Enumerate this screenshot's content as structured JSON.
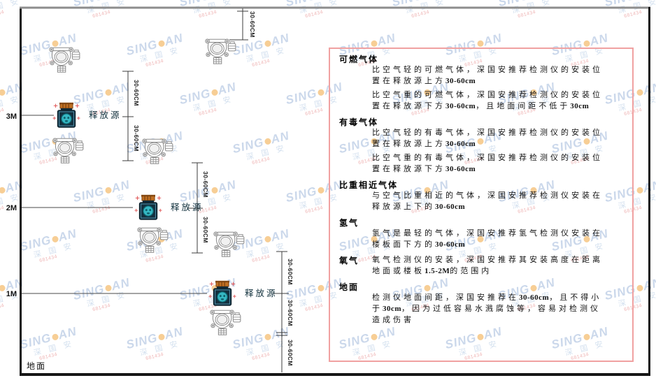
{
  "watermark": {
    "brand_left": "SING",
    "brand_right": "AN",
    "subtitle": "深 国 安",
    "code": "681434"
  },
  "diagram": {
    "heights": [
      "3M",
      "2M",
      "1M"
    ],
    "ground_label": "地面",
    "source_label": "释放源",
    "dim_label": "30-60CM"
  },
  "panel": {
    "border_color": "#f0a1a1",
    "sections": [
      {
        "heading": "可燃气体",
        "inline": false,
        "paragraphs": [
          [
            {
              "t": "比空气轻的可燃气体，深国安推荐检测仪的安装位置在释放源上方"
            },
            {
              "t": "30-60cm",
              "b": 1
            }
          ],
          [
            {
              "t": "比空气重的可燃气体，深国安推荐检测仪的安装位置在释放源下方"
            },
            {
              "t": "30-60cm",
              "b": 1
            },
            {
              "t": "，且地面间距不低于"
            },
            {
              "t": "30cm",
              "b": 1
            }
          ]
        ]
      },
      {
        "heading": "有毒气体",
        "inline": false,
        "paragraphs": [
          [
            {
              "t": "比空气轻的有毒气体，深国安推荐检测仪的安装位置在释放源上方"
            },
            {
              "t": "30-60cm",
              "b": 1
            }
          ],
          [
            {
              "t": "比空气重的有毒气体，深国安推荐检测仪的安装位置在释放源下方"
            },
            {
              "t": "30-60cm",
              "b": 1
            }
          ]
        ]
      },
      {
        "heading": "比重相近气体",
        "inline": false,
        "paragraphs": [
          [
            {
              "t": "与空气比重相近的气体，深国安推荐检测仪安装在释放源上下的"
            },
            {
              "t": "30-60cm",
              "b": 1
            }
          ]
        ]
      },
      {
        "heading": "氢气",
        "inline": false,
        "paragraphs": [
          [
            {
              "t": "氢气是最轻的气体，深国安推荐氢气检测仪安装在楼板面下方的"
            },
            {
              "t": "30-60cm",
              "b": 1
            }
          ]
        ]
      },
      {
        "heading": "氧气",
        "inline": true,
        "paragraphs": [
          [
            {
              "t": "氧气检测仪的安装，深国安推荐其安装高度在距离地面或楼板"
            },
            {
              "t": "1.5-2M",
              "b": 1
            },
            {
              "t": "的范围内"
            }
          ]
        ]
      },
      {
        "heading": "地面",
        "inline": false,
        "paragraphs": [
          [
            {
              "t": "检测仪地面间距，深国安推荐在"
            },
            {
              "t": "30-60cm",
              "b": 1
            },
            {
              "t": "，且不得小于"
            },
            {
              "t": "30cm",
              "b": 1
            },
            {
              "t": "，因为过低容易水溅腐蚀等，容易对检测仪造成伤害"
            }
          ]
        ]
      }
    ]
  }
}
